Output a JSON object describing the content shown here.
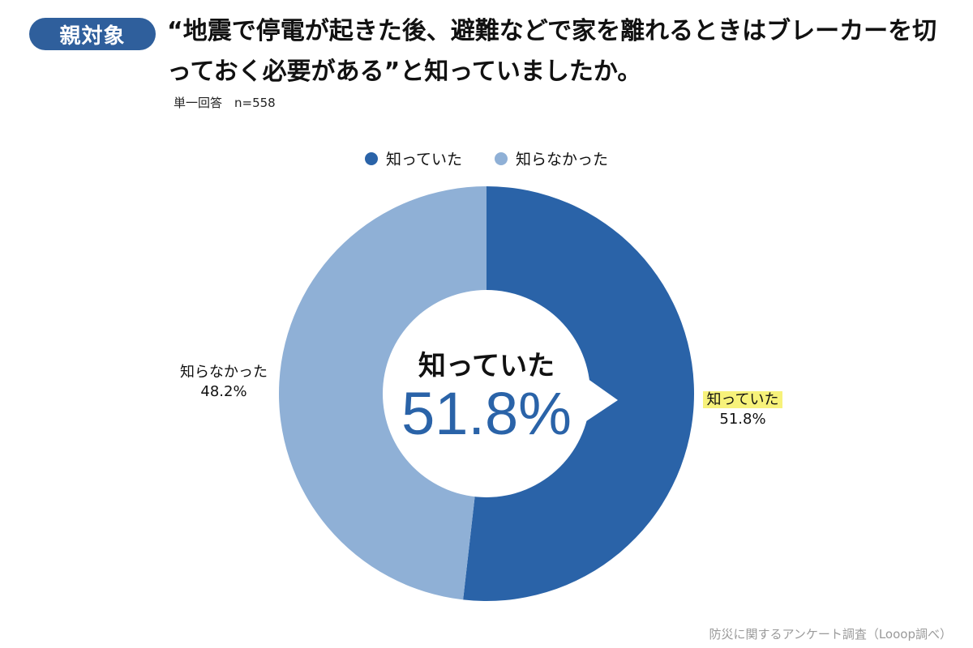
{
  "badge": "親対象",
  "title": "“地震で停電が起きた後、避難などで家を離れるときはブレーカーを切っておく必要がある”と知っていましたか。",
  "subtitle": "単一回答　n=558",
  "source": "防災に関するアンケート調査（Looop調べ）",
  "colors": {
    "knew": "#2a63a8",
    "did_not_know": "#8fb0d6",
    "badge": "#2f5f9c",
    "highlight": "#f7f27a"
  },
  "chart_data": {
    "type": "pie",
    "donut": true,
    "legend_position": "top",
    "labels": [
      "知っていた",
      "知らなかった"
    ],
    "values": [
      51.8,
      48.2
    ],
    "value_labels": [
      "51.8%",
      "48.2%"
    ],
    "highlight": {
      "label": "知っていた",
      "value": "51.8%"
    }
  }
}
